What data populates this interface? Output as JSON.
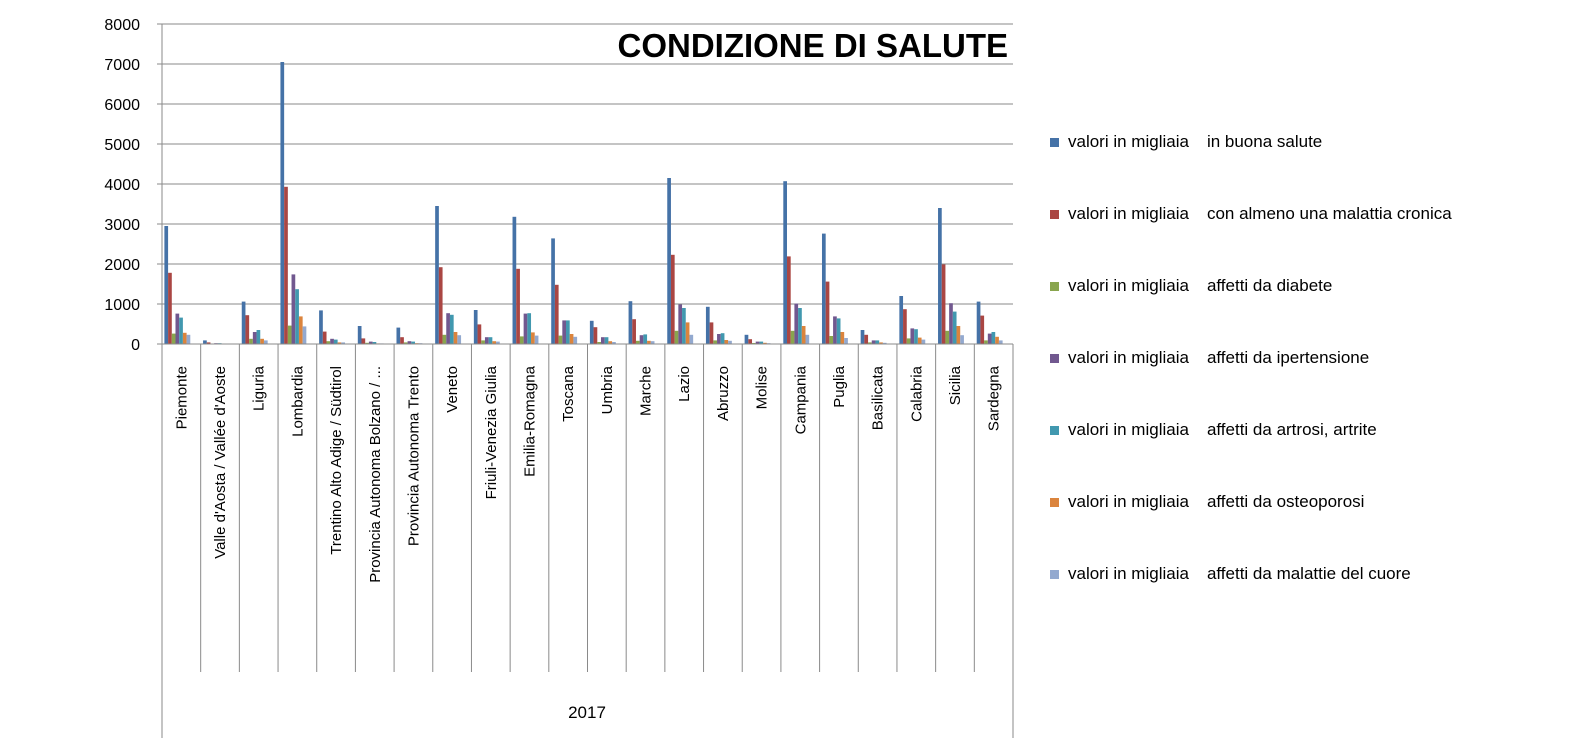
{
  "chart_data": {
    "type": "bar",
    "title": "CONDIZIONE DI SALUTE",
    "group_label": "2017",
    "ylim": [
      0,
      8000
    ],
    "yticks": [
      0,
      1000,
      2000,
      3000,
      4000,
      5000,
      6000,
      7000,
      8000
    ],
    "grid": true,
    "legend_position": "right",
    "categories": [
      "Piemonte",
      "Valle d'Aosta / Vallée d'Aoste",
      "Liguria",
      "Lombardia",
      "Trentino Alto Adige / Südtirol",
      "Provincia Autonoma Bolzano / ...",
      "Provincia Autonoma Trento",
      "Veneto",
      "Friuli-Venezia Giulia",
      "Emilia-Romagna",
      "Toscana",
      "Umbria",
      "Marche",
      "Lazio",
      "Abruzzo",
      "Molise",
      "Campania",
      "Puglia",
      "Basilicata",
      "Calabria",
      "Sicilia",
      "Sardegna"
    ],
    "series": [
      {
        "name": "valori in migliaia",
        "name_suffix": "in buona salute",
        "color": "#4572A7",
        "values": [
          2950,
          90,
          1060,
          7050,
          840,
          450,
          410,
          3450,
          850,
          3180,
          2640,
          580,
          1070,
          4150,
          930,
          230,
          4070,
          2760,
          350,
          1200,
          3400,
          1060
        ]
      },
      {
        "name": "valori in migliaia",
        "name_suffix": "con almeno una malattia cronica",
        "color": "#AA4643",
        "values": [
          1780,
          40,
          720,
          3930,
          310,
          140,
          170,
          1920,
          490,
          1880,
          1480,
          420,
          620,
          2230,
          540,
          120,
          2190,
          1560,
          230,
          870,
          1990,
          710
        ]
      },
      {
        "name": "valori in migliaia",
        "name_suffix": "affetti da diabete",
        "color": "#89A54E",
        "values": [
          260,
          8,
          130,
          460,
          70,
          30,
          40,
          230,
          90,
          190,
          210,
          50,
          80,
          330,
          90,
          25,
          330,
          200,
          40,
          140,
          330,
          90
        ]
      },
      {
        "name": "valori in migliaia",
        "name_suffix": "affetti da ipertensione",
        "color": "#71588F",
        "values": [
          760,
          20,
          300,
          1740,
          130,
          60,
          70,
          770,
          170,
          760,
          590,
          170,
          220,
          990,
          250,
          60,
          1010,
          690,
          90,
          390,
          1020,
          260
        ]
      },
      {
        "name": "valori in migliaia",
        "name_suffix": "affetti da artrosi, artrite",
        "color": "#4198AF",
        "values": [
          660,
          20,
          350,
          1370,
          110,
          50,
          60,
          730,
          170,
          770,
          590,
          170,
          240,
          900,
          270,
          60,
          900,
          640,
          90,
          370,
          810,
          300
        ]
      },
      {
        "name": "valori in migliaia",
        "name_suffix": "affetti da osteoporosi",
        "color": "#DB843D",
        "values": [
          280,
          8,
          130,
          690,
          40,
          15,
          20,
          300,
          70,
          290,
          250,
          70,
          80,
          540,
          100,
          30,
          450,
          300,
          40,
          160,
          450,
          180
        ]
      },
      {
        "name": "valori in migliaia",
        "name_suffix": "affetti da malattie del cuore",
        "color": "#93A9CF",
        "values": [
          230,
          6,
          90,
          440,
          40,
          15,
          20,
          220,
          60,
          210,
          180,
          50,
          70,
          230,
          80,
          20,
          230,
          150,
          30,
          110,
          220,
          90
        ]
      }
    ]
  }
}
